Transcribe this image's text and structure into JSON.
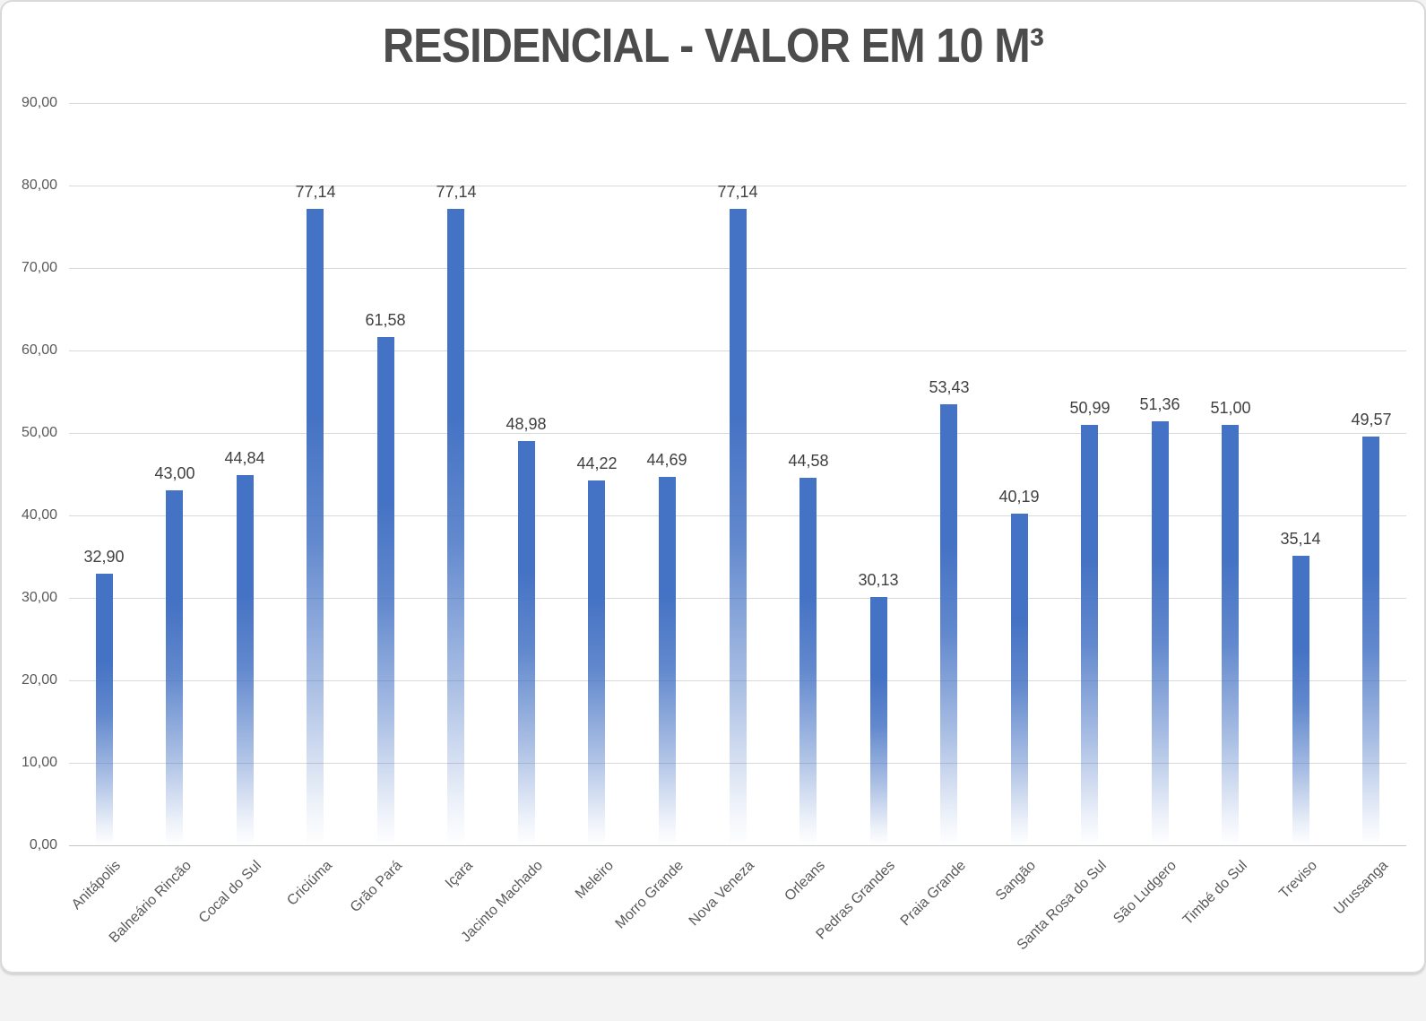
{
  "chart_data": {
    "type": "bar",
    "title": "RESIDENCIAL - VALOR EM 10 M³",
    "categories": [
      "Anitápolis",
      "Balneário Rincão",
      "Cocal do Sul",
      "Criciúma",
      "Grão Pará",
      "Içara",
      "Jacinto Machado",
      "Meleiro",
      "Morro Grande",
      "Nova Veneza",
      "Orleans",
      "Pedras Grandes",
      "Praia Grande",
      "Sangão",
      "Santa Rosa do Sul",
      "São Ludgero",
      "Timbé do Sul",
      "Treviso",
      "Urussanga"
    ],
    "values": [
      32.9,
      43.0,
      44.84,
      77.14,
      61.58,
      77.14,
      48.98,
      44.22,
      44.69,
      77.14,
      44.58,
      30.13,
      53.43,
      40.19,
      50.99,
      51.36,
      51.0,
      35.14,
      49.57
    ],
    "value_labels": [
      "32,90",
      "43,00",
      "44,84",
      "77,14",
      "61,58",
      "77,14",
      "48,98",
      "44,22",
      "44,69",
      "77,14",
      "44,58",
      "30,13",
      "53,43",
      "40,19",
      "50,99",
      "51,36",
      "51,00",
      "35,14",
      "49,57"
    ],
    "xlabel": "",
    "ylabel": "",
    "ylim": [
      0,
      90
    ],
    "yticks": [
      0,
      10,
      20,
      30,
      40,
      50,
      60,
      70,
      80,
      90
    ],
    "ytick_labels": [
      "0,00",
      "10,00",
      "20,00",
      "30,00",
      "40,00",
      "50,00",
      "60,00",
      "70,00",
      "80,00",
      "90,00"
    ],
    "grid": "horizontal",
    "legend": "none",
    "decimal_separator": ","
  },
  "style": {
    "bar_color": "#4472C4",
    "bar_fade_to": "#FFFFFF",
    "title_color": "#4C4C4C",
    "axis_label_color": "#595959",
    "data_label_color": "#404040",
    "gridline_color": "#D9D9D9",
    "baseline_color": "#C6C6C6",
    "frame_border_color": "#D9D9D9",
    "background": "#FFFFFF"
  }
}
